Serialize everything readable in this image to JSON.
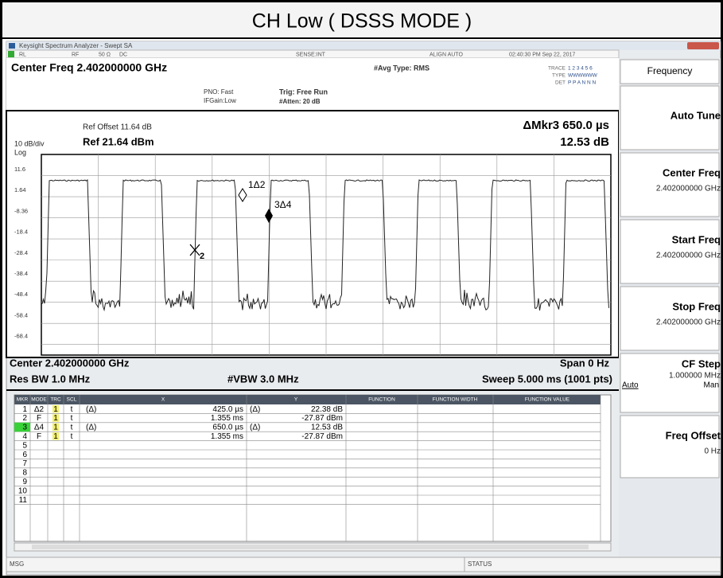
{
  "title": "CH Low ( DSSS MODE )",
  "window_title": "Keysight Spectrum Analyzer - Swept SA",
  "status_row": [
    "RL",
    "RF",
    "50 Ω",
    "DC",
    "SENSE:INT",
    "ALIGN AUTO",
    "02:40:30 PM Sep 22, 2017"
  ],
  "center_freq": "Center Freq 2.402000000 GHz",
  "pno": "PNO: Fast",
  "ifgain": "IFGain:Low",
  "trig": "Trig: Free Run",
  "atten": "#Atten: 20 dB",
  "avg": "#Avg Type: RMS",
  "trace_info": [
    {
      "label": "TRACE",
      "value": "1 2 3 4 5 6"
    },
    {
      "label": "TYPE",
      "value": "WWWWWW"
    },
    {
      "label": "DET",
      "value": "P P A N N N"
    }
  ],
  "ref_offset": "Ref Offset 11.64 dB",
  "scale": "10 dB/div",
  "ref_level": "Ref 21.64 dBm",
  "log": "Log",
  "marker_readout": [
    "ΔMkr3 650.0 µs",
    "12.53 dB"
  ],
  "y_labels": [
    "11.6",
    "1.64",
    "-8.36",
    "-18.4",
    "-28.4",
    "-38.4",
    "-48.4",
    "-58.4",
    "-68.4"
  ],
  "markers": [
    "1Δ2",
    "3Δ4",
    "2"
  ],
  "footer": {
    "center": "Center 2.402000000 GHz",
    "span": "Span 0 Hz",
    "res_bw": "Res BW 1.0 MHz",
    "vbw": "#VBW 3.0 MHz",
    "sweep": "Sweep  5.000 ms (1001 pts)"
  },
  "table": {
    "headers": [
      "MKR",
      "MODE",
      "TRC",
      "SCL",
      "X",
      "Y",
      "FUNCTION",
      "FUNCTION WIDTH",
      "FUNCTION VALUE"
    ],
    "rows": [
      {
        "mkr": "1",
        "mode": "Δ2",
        "trc": "1",
        "scl": "t",
        "x_ref": "(Δ)",
        "x": "425.0 µs",
        "y_ref": "(Δ)",
        "y": "22.38 dB"
      },
      {
        "mkr": "2",
        "mode": "F",
        "trc": "1",
        "scl": "t",
        "x": "1.355 ms",
        "y": "-27.87 dBm"
      },
      {
        "mkr": "3",
        "mode": "Δ4",
        "trc": "1",
        "scl": "t",
        "x_ref": "(Δ)",
        "x": "650.0 µs",
        "y_ref": "(Δ)",
        "y": "12.53 dB"
      },
      {
        "mkr": "4",
        "mode": "F",
        "trc": "1",
        "scl": "t",
        "x": "1.355 ms",
        "y": "-27.87 dBm"
      },
      {
        "mkr": "5"
      },
      {
        "mkr": "6"
      },
      {
        "mkr": "7"
      },
      {
        "mkr": "8"
      },
      {
        "mkr": "9"
      },
      {
        "mkr": "10"
      },
      {
        "mkr": "11"
      }
    ]
  },
  "softkeys": {
    "menu": "Frequency",
    "keys": [
      {
        "label": "Auto Tune"
      },
      {
        "label": "Center Freq",
        "value": "2.402000000 GHz"
      },
      {
        "label": "Start Freq",
        "value": "2.402000000 GHz"
      },
      {
        "label": "Stop Freq",
        "value": "2.402000000 GHz"
      },
      {
        "label": "CF Step",
        "value": "1.000000 MHz",
        "options": [
          "Auto",
          "Man"
        ]
      },
      {
        "label": "Freq Offset",
        "value": "0 Hz"
      }
    ]
  },
  "msg": "MSG",
  "status": "STATUS"
}
